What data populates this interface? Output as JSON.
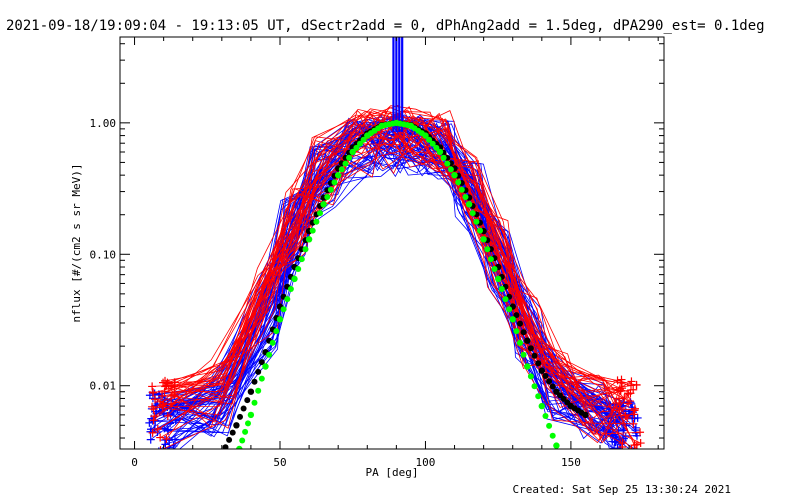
{
  "chart_data": {
    "type": "line",
    "title": "2021-09-18/19:09:04 - 19:13:05 UT, dSectr2add = 0, dPhAng2add = 1.5deg, dPA290_est=  0.1deg",
    "xlabel": "PA [deg]",
    "ylabel": "nflux [#/(cm2 s sr MeV)]",
    "xlim": [
      -5,
      182
    ],
    "ylim": [
      0.0033,
      4.5
    ],
    "y_scale": "log",
    "grid": false,
    "x_ticks": [
      0,
      50,
      100,
      150
    ],
    "x_tick_labels": [
      "0",
      "50",
      "100",
      "150"
    ],
    "y_ticks": [
      1.0,
      0.1,
      0.01
    ],
    "y_tick_labels": [
      "1.00",
      "0.10",
      "0.01"
    ],
    "footer": "Created: Sat Sep 25 13:30:24 2021",
    "colors": {
      "blue_series": "#0000ff",
      "red_series": "#ff0000",
      "black_fit": "#000000",
      "green_fit": "#00ff00"
    },
    "bundles": [
      {
        "color": "blue",
        "count": 60,
        "x": [
          10,
          30,
          45,
          55,
          65,
          78,
          88,
          95,
          105,
          115,
          125,
          135,
          145,
          158,
          168
        ],
        "y": [
          0.006,
          0.008,
          0.035,
          0.18,
          0.45,
          0.73,
          0.78,
          0.78,
          0.73,
          0.35,
          0.1,
          0.028,
          0.01,
          0.007,
          0.005
        ],
        "spread_low_y": 0.5,
        "spread_high_y": 1.5,
        "spread_low_x": 5,
        "spread_high_x": 5
      },
      {
        "color": "red",
        "count": 35,
        "x": [
          10,
          30,
          45,
          55,
          65,
          78,
          88,
          95,
          105,
          115,
          125,
          135,
          145,
          158,
          170
        ],
        "y": [
          0.007,
          0.01,
          0.05,
          0.2,
          0.5,
          0.8,
          0.85,
          0.85,
          0.8,
          0.35,
          0.12,
          0.03,
          0.012,
          0.008,
          0.007
        ],
        "spread_low_y": 0.45,
        "spread_high_y": 1.6,
        "spread_low_x": 4,
        "spread_high_x": 4
      }
    ],
    "spike": {
      "x": [
        89,
        90,
        91,
        92
      ],
      "y_low": 0.85,
      "y_high": 4.5
    },
    "series": [
      {
        "color": "black",
        "fit": "sin^n",
        "x": [
          30,
          35,
          40,
          45,
          50,
          55,
          60,
          65,
          70,
          75,
          80,
          85,
          90,
          95,
          100,
          105,
          110,
          115,
          120,
          125,
          130,
          135,
          140,
          145,
          150,
          155
        ],
        "y": [
          0.003,
          0.005,
          0.009,
          0.018,
          0.04,
          0.08,
          0.15,
          0.27,
          0.45,
          0.65,
          0.83,
          0.96,
          1.0,
          0.96,
          0.83,
          0.65,
          0.45,
          0.27,
          0.15,
          0.08,
          0.04,
          0.022,
          0.013,
          0.009,
          0.007,
          0.006
        ]
      },
      {
        "color": "green",
        "fit": "gaussian",
        "x": [
          36,
          40,
          45,
          50,
          55,
          60,
          65,
          70,
          75,
          80,
          85,
          90,
          95,
          100,
          105,
          110,
          115,
          120,
          125,
          130,
          135,
          140,
          145
        ],
        "y": [
          0.0033,
          0.006,
          0.014,
          0.032,
          0.065,
          0.13,
          0.24,
          0.4,
          0.6,
          0.8,
          0.95,
          1.0,
          0.95,
          0.8,
          0.6,
          0.4,
          0.24,
          0.13,
          0.065,
          0.032,
          0.014,
          0.007,
          0.0035
        ]
      }
    ]
  }
}
